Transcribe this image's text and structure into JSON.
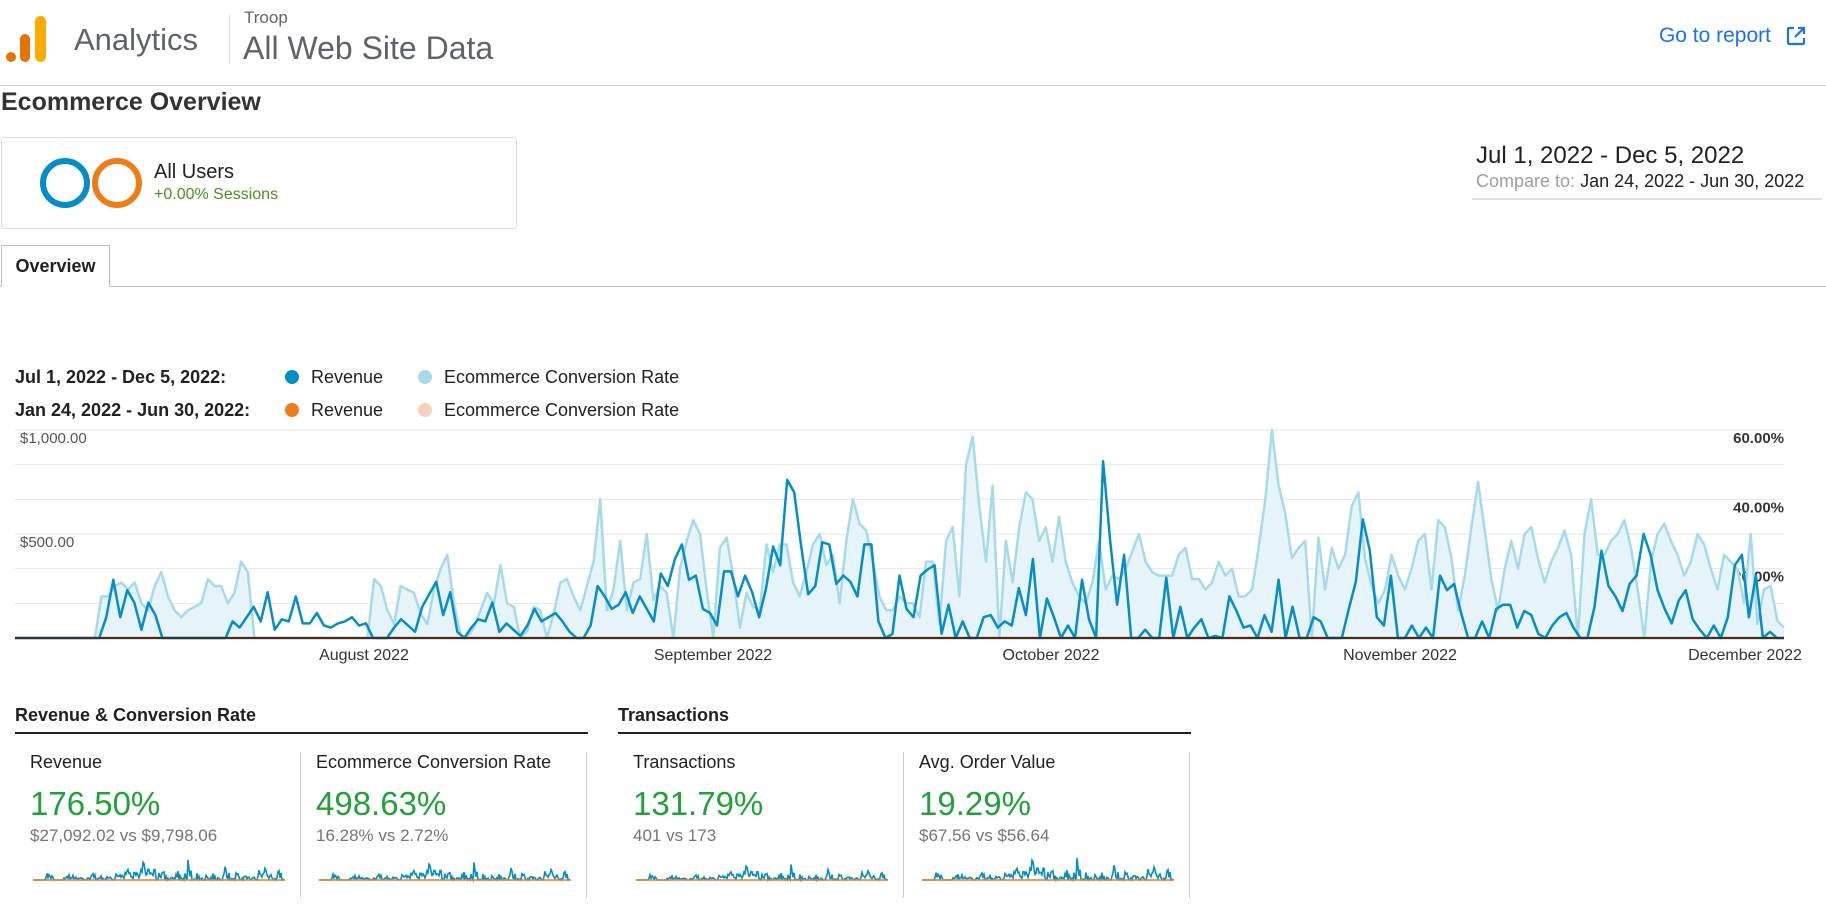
{
  "header": {
    "app_title": "Analytics",
    "account": "Troop",
    "property": "All Web Site Data",
    "goto_label": "Go to report"
  },
  "page": {
    "title": "Ecommerce Overview"
  },
  "segment": {
    "name": "All Users",
    "sub": "+0.00% Sessions"
  },
  "date_range": {
    "main": "Jul 1, 2022 - Dec 5, 2022",
    "compare_label": "Compare to:",
    "compare_value": "Jan 24, 2022 - Jun 30, 2022"
  },
  "tabs": [
    {
      "label": "Overview"
    }
  ],
  "legend": {
    "current_period": "Jul 1, 2022 - Dec 5, 2022:",
    "previous_period": "Jan 24, 2022 - Jun 30, 2022:",
    "revenue_label": "Revenue",
    "conversion_label": "Ecommerce Conversion Rate"
  },
  "colors": {
    "revenue_current": "#058dc7",
    "conversion_current": "#a6daeb",
    "revenue_previous": "#ed7e17",
    "conversion_previous": "#f3d3be",
    "positive": "#22a03a"
  },
  "chart_data": {
    "type": "line",
    "left_axis_ticks": [
      "$1,000.00",
      "$500.00"
    ],
    "right_axis_ticks": [
      "60.00%",
      "40.00%",
      "20.00%"
    ],
    "x_tick_labels": [
      "August 2022",
      "September 2022",
      "October 2022",
      "November 2022",
      "December 2022"
    ],
    "ylim_left": [
      0,
      1000
    ],
    "ylim_right": [
      0,
      60
    ],
    "series": [
      {
        "name": "Revenue",
        "period": "Jul 1, 2022 - Dec 5, 2022",
        "values": [
          0,
          0,
          0,
          0,
          0,
          0,
          0,
          0,
          0,
          0,
          0,
          0,
          0,
          100,
          280,
          100,
          230,
          170,
          40,
          170,
          110,
          0,
          0,
          0,
          0,
          0,
          0,
          0,
          0,
          0,
          0,
          80,
          50,
          100,
          150,
          80,
          220,
          40,
          90,
          80,
          200,
          70,
          70,
          120,
          60,
          50,
          70,
          80,
          100,
          60,
          70,
          0,
          0,
          0,
          50,
          90,
          60,
          30,
          150,
          210,
          270,
          110,
          220,
          30,
          0,
          50,
          90,
          80,
          170,
          30,
          70,
          40,
          10,
          60,
          140,
          80,
          100,
          120,
          80,
          30,
          0,
          0,
          60,
          250,
          200,
          140,
          160,
          220,
          120,
          200,
          140,
          80,
          310,
          250,
          380,
          450,
          280,
          300,
          140,
          120,
          60,
          320,
          320,
          200,
          300,
          220,
          100,
          240,
          440,
          350,
          760,
          700,
          440,
          210,
          250,
          460,
          450,
          260,
          300,
          270,
          200,
          450,
          450,
          80,
          0,
          20,
          300,
          140,
          100,
          300,
          330,
          350,
          20,
          160,
          0,
          80,
          0,
          0,
          100,
          110,
          50,
          80,
          60,
          240,
          110,
          380,
          0,
          190,
          100,
          0,
          60,
          0,
          280,
          90,
          0,
          850,
          470,
          160,
          400,
          0,
          0,
          40,
          0,
          0,
          290,
          0,
          150,
          0,
          50,
          90,
          0,
          10,
          0,
          200,
          130,
          50,
          60,
          0,
          110,
          30,
          280,
          0,
          150,
          0,
          0,
          100,
          80,
          0,
          0,
          0,
          140,
          270,
          570,
          420,
          100,
          60,
          300,
          0,
          0,
          60,
          0,
          50,
          0,
          300,
          230,
          260,
          120,
          0,
          0,
          80,
          0,
          140,
          160,
          160,
          50,
          130,
          110,
          20,
          0,
          60,
          100,
          120,
          50,
          0,
          0,
          150,
          420,
          250,
          200,
          130,
          260,
          300,
          500,
          400,
          230,
          140,
          70,
          180,
          230,
          90,
          40,
          0,
          60,
          0,
          100,
          350,
          400,
          100,
          300,
          0,
          30,
          0,
          0
        ]
      },
      {
        "name": "Ecommerce Conversion Rate",
        "period": "Jul 1, 2022 - Dec 5, 2022",
        "values": [
          0,
          0,
          0,
          0,
          0,
          0,
          0,
          0,
          0,
          0,
          0,
          0,
          0,
          12,
          12,
          15,
          16,
          14,
          16,
          10,
          8,
          15,
          19,
          12,
          8,
          6,
          8,
          9,
          10,
          17,
          15,
          15,
          10,
          13,
          22,
          19,
          0,
          0,
          0,
          0,
          0,
          0,
          0,
          0,
          0,
          0,
          0,
          0,
          0,
          0,
          0,
          0,
          0,
          0,
          17,
          15,
          8,
          4,
          15,
          14,
          13,
          7,
          4,
          14,
          20,
          24,
          10,
          1,
          0,
          3,
          8,
          13,
          10,
          21,
          10,
          9,
          0,
          2,
          9,
          8,
          0,
          7,
          16,
          17,
          12,
          8,
          15,
          22,
          40,
          8,
          14,
          28,
          8,
          16,
          17,
          30,
          11,
          15,
          13,
          0,
          20,
          28,
          34,
          30,
          14,
          0,
          26,
          29,
          18,
          3,
          13,
          9,
          8,
          27,
          19,
          27,
          27,
          16,
          12,
          19,
          27,
          30,
          21,
          24,
          10,
          28,
          40,
          33,
          31,
          22,
          12,
          8,
          8,
          12,
          10,
          10,
          6,
          22,
          22,
          4,
          28,
          32,
          12,
          50,
          58,
          38,
          22,
          44,
          0,
          28,
          16,
          32,
          42,
          40,
          28,
          32,
          22,
          35,
          22,
          16,
          12,
          10,
          16,
          28,
          14,
          18,
          17,
          20,
          25,
          30,
          22,
          19,
          18,
          18,
          18,
          24,
          26,
          17,
          17,
          14,
          16,
          22,
          18,
          20,
          12,
          12,
          14,
          26,
          40,
          60,
          44,
          36,
          23,
          26,
          28,
          0,
          29,
          14,
          26,
          20,
          24,
          38,
          42,
          23,
          15,
          10,
          14,
          24,
          18,
          14,
          20,
          28,
          30,
          14,
          34,
          32,
          23,
          8,
          18,
          32,
          45,
          31,
          17,
          8,
          20,
          28,
          20,
          30,
          32,
          23,
          16,
          22,
          26,
          31,
          24,
          0,
          30,
          40,
          24,
          24,
          28,
          30,
          34,
          26,
          14,
          0,
          22,
          30,
          33,
          28,
          24,
          18,
          22,
          30,
          27,
          20,
          14,
          24,
          22,
          20,
          10,
          30,
          4,
          14,
          15,
          5,
          3
        ]
      },
      {
        "name": "Revenue",
        "period": "Jan 24, 2022 - Jun 30, 2022",
        "values": [
          0,
          0,
          0,
          0,
          0,
          0,
          0,
          0,
          0,
          0,
          0,
          0,
          0,
          0,
          0,
          0,
          0,
          0,
          0,
          0,
          0,
          0,
          0,
          0,
          0,
          0,
          0,
          0,
          0,
          0,
          0,
          0,
          0,
          0,
          0,
          0,
          0,
          0,
          0,
          0,
          0,
          0,
          0,
          0,
          0,
          0,
          0,
          0,
          0,
          0,
          0,
          0,
          0,
          0,
          0,
          0,
          0,
          0,
          0,
          0,
          0,
          0,
          0,
          0,
          0,
          0,
          0,
          0,
          0,
          0,
          0,
          0,
          0,
          0,
          0,
          0,
          0,
          0,
          0,
          0,
          0,
          0,
          0,
          0,
          0,
          0,
          0,
          0,
          0,
          0,
          0,
          0,
          0,
          0,
          0,
          0,
          0,
          0,
          0,
          0,
          0,
          0,
          0,
          0,
          0,
          0,
          0,
          0,
          0,
          0,
          0,
          0,
          0,
          0,
          0,
          0,
          0,
          0,
          0,
          0,
          0,
          0,
          0,
          0,
          0,
          0,
          0,
          0,
          0,
          0,
          0,
          0,
          0,
          0,
          0,
          0,
          0,
          0,
          0,
          0,
          0,
          0,
          0,
          0,
          0,
          0,
          0,
          0,
          0,
          0,
          0,
          0,
          0,
          0,
          0,
          0,
          0,
          0,
          0,
          0,
          0,
          0,
          0,
          0,
          0,
          0,
          0,
          0,
          0,
          0,
          0,
          0,
          0,
          0,
          0,
          0,
          0,
          0,
          0,
          0,
          0,
          0,
          0,
          0,
          0,
          0,
          0,
          0,
          0,
          0,
          0,
          0,
          0,
          0,
          0,
          0,
          0,
          0,
          0,
          0,
          0,
          0,
          0,
          0,
          0,
          0,
          0,
          0,
          0,
          0,
          0,
          0,
          0,
          0,
          0,
          0,
          0,
          0,
          0,
          0,
          0,
          0,
          0,
          0,
          0,
          0,
          0,
          0,
          0,
          0,
          0,
          0,
          0,
          0,
          0,
          0,
          0,
          0,
          0,
          0,
          0,
          0,
          0,
          0,
          0,
          0,
          0,
          0,
          0,
          0,
          0,
          0,
          0,
          0,
          0,
          0,
          0,
          0,
          0,
          0,
          0,
          0,
          0,
          0,
          0,
          0,
          0,
          0,
          0,
          0,
          0,
          0,
          0,
          0,
          0,
          0,
          0,
          0,
          0,
          0,
          0,
          0,
          0,
          0,
          0,
          0,
          0,
          0,
          0,
          0,
          0,
          0
        ]
      },
      {
        "name": "Ecommerce Conversion Rate",
        "period": "Jan 24, 2022 - Jun 30, 2022",
        "values": [
          0,
          0,
          0,
          0,
          0,
          0,
          0,
          0,
          0,
          0,
          0,
          0,
          0,
          0,
          0,
          0,
          0,
          0,
          0,
          0,
          0,
          0,
          0,
          0,
          0,
          0,
          0,
          0,
          0,
          0,
          0,
          0,
          0,
          0,
          0,
          0,
          0,
          0,
          0,
          0,
          0,
          0,
          0,
          0,
          0,
          0,
          0,
          0,
          0,
          0,
          0,
          0,
          0,
          0,
          0,
          0,
          0,
          0,
          0,
          0,
          0,
          0,
          0,
          0,
          0,
          0,
          0,
          0,
          0,
          0,
          0,
          0,
          0,
          0,
          0,
          0,
          0,
          0,
          0,
          0,
          0,
          0,
          0,
          0,
          0,
          0,
          0,
          0,
          0,
          0,
          0,
          0,
          0,
          0,
          0,
          0,
          0,
          0,
          0,
          0,
          0,
          0,
          0,
          0,
          0,
          0,
          0,
          0,
          0,
          0,
          0,
          0,
          0,
          0,
          0,
          0,
          0,
          0,
          0,
          0,
          0,
          0,
          0,
          0,
          0,
          0,
          0,
          0,
          0,
          0,
          0,
          0,
          0,
          0,
          0,
          0,
          0,
          0,
          0,
          0,
          0,
          0,
          0,
          0,
          0,
          0,
          0,
          0,
          0,
          0,
          0,
          0,
          0,
          0,
          0,
          0,
          0,
          0,
          0,
          0,
          0,
          0,
          0,
          0,
          0,
          0,
          0,
          0,
          0,
          0,
          0,
          0,
          0,
          0,
          0,
          0,
          0,
          0,
          0,
          0,
          0,
          0,
          0,
          0,
          0,
          0,
          0,
          0,
          0,
          0,
          0,
          0,
          0,
          0,
          0,
          0,
          0,
          0,
          0,
          0,
          0,
          0,
          0,
          0,
          0,
          0,
          0,
          0,
          0,
          0,
          0,
          0,
          0,
          0,
          0,
          0,
          0,
          0,
          0,
          0,
          0,
          0,
          0,
          0,
          0,
          0,
          0,
          0,
          0,
          0,
          0,
          0,
          0,
          0,
          0,
          0,
          0,
          0,
          0,
          0,
          0,
          0,
          0,
          0,
          0,
          0,
          0,
          0,
          0,
          0,
          0,
          0,
          0,
          0,
          0,
          0,
          0,
          0,
          0,
          0,
          0,
          0,
          0,
          0,
          0,
          0,
          0,
          0,
          0,
          0,
          0,
          0,
          0,
          0,
          0,
          0,
          0,
          0,
          0,
          0,
          0,
          0,
          0,
          0,
          0,
          0,
          0,
          0
        ]
      }
    ]
  },
  "sections": [
    {
      "title": "Revenue & Conversion Rate"
    },
    {
      "title": "Transactions"
    }
  ],
  "metrics": [
    {
      "name": "Revenue",
      "change": "176.50%",
      "compare": "$27,092.02 vs $9,798.06"
    },
    {
      "name": "Ecommerce Conversion Rate",
      "change": "498.63%",
      "compare": "16.28% vs 2.72%"
    },
    {
      "name": "Transactions",
      "change": "131.79%",
      "compare": "401 vs 173"
    },
    {
      "name": "Avg. Order Value",
      "change": "19.29%",
      "compare": "$67.56 vs $56.64"
    }
  ]
}
